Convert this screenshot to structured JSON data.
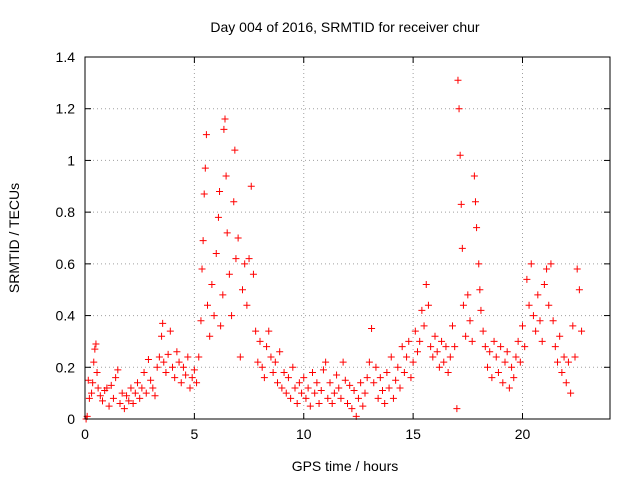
{
  "chart_data": {
    "type": "scatter",
    "title": "Day 004 of 2016, SRMTID for receiver chur",
    "xlabel": "GPS time / hours",
    "ylabel": "SRMTID / TECUs",
    "xlim": [
      0,
      24
    ],
    "ylim": [
      0,
      1.4
    ],
    "xticks": [
      0,
      5,
      10,
      15,
      20
    ],
    "xtick_labels": [
      "0",
      "5",
      "10",
      "15",
      "20"
    ],
    "yticks": [
      0,
      0.2,
      0.4,
      0.6,
      0.8,
      1.0,
      1.2,
      1.4
    ],
    "ytick_labels": [
      "0",
      "0.2",
      "0.4",
      "0.6",
      "0.8",
      "1",
      "1.2",
      "1.4"
    ],
    "grid": true,
    "marker": "plus",
    "point_color": "#ff0000",
    "series": [
      {
        "name": "SRMTID",
        "points": [
          [
            0.05,
            0.0
          ],
          [
            0.1,
            0.01
          ],
          [
            0.15,
            0.15
          ],
          [
            0.2,
            0.08
          ],
          [
            0.3,
            0.1
          ],
          [
            0.35,
            0.14
          ],
          [
            0.4,
            0.22
          ],
          [
            0.45,
            0.27
          ],
          [
            0.5,
            0.29
          ],
          [
            0.55,
            0.18
          ],
          [
            0.6,
            0.12
          ],
          [
            0.7,
            0.09
          ],
          [
            0.8,
            0.07
          ],
          [
            0.9,
            0.11
          ],
          [
            1.0,
            0.12
          ],
          [
            1.1,
            0.05
          ],
          [
            1.2,
            0.13
          ],
          [
            1.3,
            0.08
          ],
          [
            1.4,
            0.16
          ],
          [
            1.5,
            0.19
          ],
          [
            1.6,
            0.06
          ],
          [
            1.7,
            0.1
          ],
          [
            1.8,
            0.04
          ],
          [
            1.9,
            0.09
          ],
          [
            2.0,
            0.07
          ],
          [
            2.1,
            0.12
          ],
          [
            2.2,
            0.06
          ],
          [
            2.3,
            0.1
          ],
          [
            2.4,
            0.14
          ],
          [
            2.5,
            0.08
          ],
          [
            2.6,
            0.12
          ],
          [
            2.7,
            0.18
          ],
          [
            2.8,
            0.1
          ],
          [
            2.9,
            0.23
          ],
          [
            3.0,
            0.15
          ],
          [
            3.1,
            0.12
          ],
          [
            3.2,
            0.09
          ],
          [
            3.3,
            0.2
          ],
          [
            3.4,
            0.24
          ],
          [
            3.5,
            0.32
          ],
          [
            3.55,
            0.37
          ],
          [
            3.6,
            0.22
          ],
          [
            3.7,
            0.18
          ],
          [
            3.8,
            0.25
          ],
          [
            3.9,
            0.34
          ],
          [
            4.0,
            0.2
          ],
          [
            4.1,
            0.16
          ],
          [
            4.2,
            0.26
          ],
          [
            4.3,
            0.22
          ],
          [
            4.4,
            0.14
          ],
          [
            4.5,
            0.2
          ],
          [
            4.6,
            0.17
          ],
          [
            4.7,
            0.24
          ],
          [
            4.8,
            0.12
          ],
          [
            4.9,
            0.16
          ],
          [
            5.0,
            0.19
          ],
          [
            5.1,
            0.14
          ],
          [
            5.2,
            0.24
          ],
          [
            5.3,
            0.38
          ],
          [
            5.35,
            0.58
          ],
          [
            5.4,
            0.69
          ],
          [
            5.45,
            0.87
          ],
          [
            5.5,
            0.97
          ],
          [
            5.55,
            1.1
          ],
          [
            5.6,
            0.44
          ],
          [
            5.7,
            0.32
          ],
          [
            5.8,
            0.52
          ],
          [
            5.9,
            0.4
          ],
          [
            6.0,
            0.64
          ],
          [
            6.1,
            0.78
          ],
          [
            6.15,
            0.88
          ],
          [
            6.2,
            0.36
          ],
          [
            6.3,
            0.48
          ],
          [
            6.35,
            1.12
          ],
          [
            6.4,
            1.16
          ],
          [
            6.45,
            0.94
          ],
          [
            6.5,
            0.72
          ],
          [
            6.6,
            0.56
          ],
          [
            6.7,
            0.4
          ],
          [
            6.8,
            0.84
          ],
          [
            6.85,
            1.04
          ],
          [
            6.9,
            0.62
          ],
          [
            7.0,
            0.7
          ],
          [
            7.1,
            0.24
          ],
          [
            7.2,
            0.5
          ],
          [
            7.3,
            0.6
          ],
          [
            7.4,
            0.44
          ],
          [
            7.5,
            0.62
          ],
          [
            7.6,
            0.9
          ],
          [
            7.7,
            0.56
          ],
          [
            7.8,
            0.34
          ],
          [
            7.9,
            0.22
          ],
          [
            8.0,
            0.3
          ],
          [
            8.1,
            0.2
          ],
          [
            8.2,
            0.16
          ],
          [
            8.3,
            0.28
          ],
          [
            8.4,
            0.34
          ],
          [
            8.5,
            0.24
          ],
          [
            8.6,
            0.18
          ],
          [
            8.7,
            0.22
          ],
          [
            8.8,
            0.14
          ],
          [
            8.9,
            0.26
          ],
          [
            9.0,
            0.12
          ],
          [
            9.1,
            0.18
          ],
          [
            9.2,
            0.1
          ],
          [
            9.3,
            0.16
          ],
          [
            9.4,
            0.08
          ],
          [
            9.5,
            0.2
          ],
          [
            9.6,
            0.12
          ],
          [
            9.7,
            0.06
          ],
          [
            9.8,
            0.14
          ],
          [
            9.9,
            0.1
          ],
          [
            10.0,
            0.16
          ],
          [
            10.1,
            0.08
          ],
          [
            10.2,
            0.12
          ],
          [
            10.3,
            0.05
          ],
          [
            10.4,
            0.18
          ],
          [
            10.5,
            0.1
          ],
          [
            10.6,
            0.14
          ],
          [
            10.7,
            0.06
          ],
          [
            10.8,
            0.11
          ],
          [
            10.9,
            0.19
          ],
          [
            11.0,
            0.22
          ],
          [
            11.1,
            0.08
          ],
          [
            11.2,
            0.14
          ],
          [
            11.3,
            0.06
          ],
          [
            11.4,
            0.1
          ],
          [
            11.5,
            0.17
          ],
          [
            11.6,
            0.12
          ],
          [
            11.7,
            0.08
          ],
          [
            11.8,
            0.22
          ],
          [
            11.9,
            0.15
          ],
          [
            12.0,
            0.06
          ],
          [
            12.1,
            0.13
          ],
          [
            12.2,
            0.04
          ],
          [
            12.3,
            0.11
          ],
          [
            12.4,
            0.01
          ],
          [
            12.5,
            0.08
          ],
          [
            12.6,
            0.14
          ],
          [
            12.7,
            0.05
          ],
          [
            12.8,
            0.1
          ],
          [
            12.9,
            0.16
          ],
          [
            13.0,
            0.22
          ],
          [
            13.1,
            0.35
          ],
          [
            13.2,
            0.14
          ],
          [
            13.3,
            0.2
          ],
          [
            13.4,
            0.08
          ],
          [
            13.5,
            0.16
          ],
          [
            13.6,
            0.11
          ],
          [
            13.7,
            0.06
          ],
          [
            13.8,
            0.18
          ],
          [
            13.9,
            0.12
          ],
          [
            14.0,
            0.24
          ],
          [
            14.1,
            0.08
          ],
          [
            14.2,
            0.15
          ],
          [
            14.3,
            0.2
          ],
          [
            14.4,
            0.12
          ],
          [
            14.5,
            0.28
          ],
          [
            14.6,
            0.18
          ],
          [
            14.7,
            0.24
          ],
          [
            14.8,
            0.3
          ],
          [
            14.9,
            0.16
          ],
          [
            15.0,
            0.22
          ],
          [
            15.1,
            0.34
          ],
          [
            15.2,
            0.26
          ],
          [
            15.3,
            0.3
          ],
          [
            15.4,
            0.42
          ],
          [
            15.5,
            0.36
          ],
          [
            15.6,
            0.52
          ],
          [
            15.7,
            0.44
          ],
          [
            15.8,
            0.28
          ],
          [
            15.9,
            0.24
          ],
          [
            16.0,
            0.32
          ],
          [
            16.1,
            0.26
          ],
          [
            16.2,
            0.2
          ],
          [
            16.3,
            0.3
          ],
          [
            16.4,
            0.22
          ],
          [
            16.5,
            0.28
          ],
          [
            16.6,
            0.18
          ],
          [
            16.7,
            0.24
          ],
          [
            16.8,
            0.36
          ],
          [
            16.9,
            0.28
          ],
          [
            17.0,
            0.04
          ],
          [
            17.05,
            1.31
          ],
          [
            17.1,
            1.2
          ],
          [
            17.15,
            1.02
          ],
          [
            17.2,
            0.83
          ],
          [
            17.25,
            0.66
          ],
          [
            17.3,
            0.44
          ],
          [
            17.4,
            0.32
          ],
          [
            17.5,
            0.48
          ],
          [
            17.6,
            0.38
          ],
          [
            17.7,
            0.3
          ],
          [
            17.8,
            0.94
          ],
          [
            17.85,
            0.84
          ],
          [
            17.9,
            0.74
          ],
          [
            18.0,
            0.6
          ],
          [
            18.05,
            0.5
          ],
          [
            18.1,
            0.42
          ],
          [
            18.2,
            0.34
          ],
          [
            18.3,
            0.28
          ],
          [
            18.4,
            0.2
          ],
          [
            18.5,
            0.26
          ],
          [
            18.6,
            0.16
          ],
          [
            18.7,
            0.3
          ],
          [
            18.8,
            0.24
          ],
          [
            18.9,
            0.18
          ],
          [
            19.0,
            0.28
          ],
          [
            19.1,
            0.14
          ],
          [
            19.2,
            0.22
          ],
          [
            19.3,
            0.26
          ],
          [
            19.4,
            0.12
          ],
          [
            19.5,
            0.2
          ],
          [
            19.6,
            0.16
          ],
          [
            19.7,
            0.24
          ],
          [
            19.8,
            0.3
          ],
          [
            19.9,
            0.22
          ],
          [
            20.0,
            0.36
          ],
          [
            20.1,
            0.28
          ],
          [
            20.2,
            0.54
          ],
          [
            20.3,
            0.44
          ],
          [
            20.4,
            0.6
          ],
          [
            20.5,
            0.4
          ],
          [
            20.6,
            0.34
          ],
          [
            20.7,
            0.48
          ],
          [
            20.8,
            0.38
          ],
          [
            20.9,
            0.3
          ],
          [
            21.0,
            0.52
          ],
          [
            21.1,
            0.58
          ],
          [
            21.2,
            0.44
          ],
          [
            21.3,
            0.6
          ],
          [
            21.4,
            0.38
          ],
          [
            21.5,
            0.28
          ],
          [
            21.6,
            0.22
          ],
          [
            21.7,
            0.32
          ],
          [
            21.8,
            0.18
          ],
          [
            21.9,
            0.24
          ],
          [
            22.0,
            0.14
          ],
          [
            22.1,
            0.22
          ],
          [
            22.2,
            0.1
          ],
          [
            22.3,
            0.36
          ],
          [
            22.4,
            0.24
          ],
          [
            22.5,
            0.58
          ],
          [
            22.6,
            0.5
          ],
          [
            22.7,
            0.34
          ]
        ]
      }
    ]
  }
}
